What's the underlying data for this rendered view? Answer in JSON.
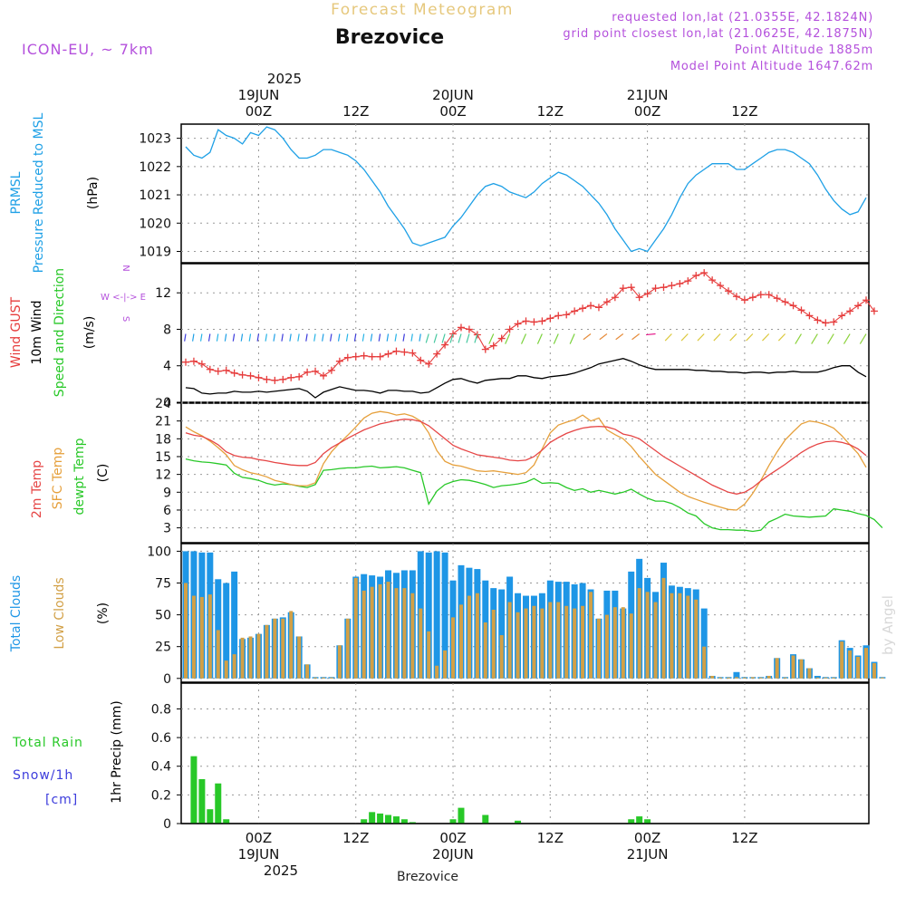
{
  "header": {
    "subtitle": "Forecast Meteogram",
    "location": "Brezovice",
    "model": "ICON-EU, ~ 7km",
    "info_lines": [
      "requested lon,lat (21.0355E, 42.1824N)",
      "grid point closest lon,lat (21.0625E, 42.1875N)",
      "Point Altitude 1885m",
      "Model Point Altitude 1647.62m"
    ],
    "bottom_label": "Brezovice",
    "watermark": "by Angel"
  },
  "colors": {
    "pressure": "#1ea0e6",
    "gust": "#e63c3c",
    "wind": "#000000",
    "temp2m": "#e64646",
    "sfc_temp": "#e6a03c",
    "dewpt": "#28c828",
    "total_clouds": "#1e96e6",
    "low_clouds": "#d2a046",
    "rain": "#28c828",
    "snow": "#3c3cdc",
    "purple": "#b450dc",
    "subtitle": "#e6c87d"
  },
  "time_axis": {
    "top_year": "2025",
    "top_labels": [
      {
        "date": "19JUN",
        "hour": "00Z"
      },
      {
        "date": "",
        "hour": "12Z"
      },
      {
        "date": "20JUN",
        "hour": "00Z"
      },
      {
        "date": "",
        "hour": "12Z"
      },
      {
        "date": "21JUN",
        "hour": "00Z"
      },
      {
        "date": "",
        "hour": "12Z"
      }
    ],
    "bottom_labels": [
      {
        "hour": "00Z",
        "date": "19JUN",
        "year": "2025"
      },
      {
        "hour": "12Z",
        "date": "",
        "year": ""
      },
      {
        "hour": "00Z",
        "date": "20JUN",
        "year": ""
      },
      {
        "hour": "12Z",
        "date": "",
        "year": ""
      },
      {
        "hour": "00Z",
        "date": "21JUN",
        "year": ""
      },
      {
        "hour": "12Z",
        "date": "",
        "year": ""
      }
    ]
  },
  "chart_data": [
    {
      "type": "line",
      "panel": "pressure",
      "ylabel_lines": [
        "PRMSL",
        "Pressure Reduced to MSL"
      ],
      "unit": "(hPa)",
      "yticks": [
        "1019",
        "1020",
        "1021",
        "1022",
        "1023"
      ],
      "ylim": [
        1018.6,
        1023.5
      ],
      "x_hours": "hours from 18JUN 15Z, 1h steps",
      "series": [
        {
          "name": "PRMSL",
          "values": [
            1022.7,
            1022.4,
            1022.3,
            1022.5,
            1023.3,
            1023.1,
            1023.0,
            1022.8,
            1023.2,
            1023.1,
            1023.4,
            1023.3,
            1023.0,
            1022.6,
            1022.3,
            1022.3,
            1022.4,
            1022.6,
            1022.6,
            1022.5,
            1022.4,
            1022.2,
            1021.9,
            1021.5,
            1021.1,
            1020.6,
            1020.2,
            1019.8,
            1019.3,
            1019.2,
            1019.3,
            1019.4,
            1019.5,
            1019.9,
            1020.2,
            1020.6,
            1021.0,
            1021.3,
            1021.4,
            1021.3,
            1021.1,
            1021.0,
            1020.9,
            1021.1,
            1021.4,
            1021.6,
            1021.8,
            1021.7,
            1021.5,
            1021.3,
            1021.0,
            1020.7,
            1020.3,
            1019.8,
            1019.4,
            1019.0,
            1019.1,
            1019.0,
            1019.4,
            1019.8,
            1020.3,
            1020.9,
            1021.4,
            1021.7,
            1021.9,
            1022.1,
            1022.1,
            1022.1,
            1021.9,
            1021.9,
            1022.1,
            1022.3,
            1022.5,
            1022.6,
            1022.6,
            1022.5,
            1022.3,
            1022.1,
            1021.7,
            1021.2,
            1020.8,
            1020.5,
            1020.3,
            1020.4,
            1020.9
          ]
        }
      ]
    },
    {
      "type": "line",
      "panel": "wind",
      "ylabel_lines": [
        "Wind GUST",
        "10m Wind",
        "Speed and Direction"
      ],
      "unit": "(m/s)",
      "compass": [
        "N",
        "W <-|-> E",
        "S"
      ],
      "yticks": [
        "0",
        "4",
        "8",
        "12"
      ],
      "ylim": [
        0,
        15.2
      ],
      "series": [
        {
          "name": "Wind GUST",
          "values": [
            4.4,
            4.5,
            4.2,
            3.6,
            3.4,
            3.5,
            3.2,
            3.0,
            2.9,
            2.7,
            2.5,
            2.4,
            2.5,
            2.7,
            2.8,
            3.3,
            3.4,
            2.9,
            3.5,
            4.5,
            4.9,
            5.0,
            5.1,
            5.0,
            5.0,
            5.3,
            5.6,
            5.5,
            5.4,
            4.6,
            4.2,
            5.3,
            6.3,
            7.5,
            8.2,
            8.0,
            7.4,
            5.8,
            6.2,
            7.0,
            8.0,
            8.6,
            8.9,
            8.8,
            8.9,
            9.2,
            9.5,
            9.6,
            10.0,
            10.3,
            10.6,
            10.4,
            11.0,
            11.5,
            12.5,
            12.6,
            11.5,
            11.9,
            12.5,
            12.6,
            12.8,
            13.0,
            13.3,
            13.9,
            14.2,
            13.4,
            12.8,
            12.2,
            11.6,
            11.2,
            11.5,
            11.8,
            11.8,
            11.4,
            11.0,
            10.6,
            10.1,
            9.5,
            9.0,
            8.7,
            8.8,
            9.5,
            10.0,
            10.6,
            11.2,
            10.0
          ]
        },
        {
          "name": "10m Wind",
          "values": [
            1.6,
            1.5,
            1.0,
            0.9,
            1.0,
            1.0,
            1.2,
            1.1,
            1.1,
            1.2,
            1.1,
            1.2,
            1.3,
            1.4,
            1.5,
            1.2,
            0.5,
            1.1,
            1.4,
            1.7,
            1.5,
            1.3,
            1.3,
            1.2,
            1.0,
            1.3,
            1.3,
            1.2,
            1.2,
            1.0,
            1.1,
            1.6,
            2.1,
            2.5,
            2.6,
            2.3,
            2.1,
            2.4,
            2.5,
            2.6,
            2.6,
            2.9,
            2.9,
            2.7,
            2.6,
            2.8,
            2.9,
            3.0,
            3.2,
            3.5,
            3.8,
            4.2,
            4.4,
            4.6,
            4.8,
            4.5,
            4.1,
            3.8,
            3.6,
            3.6,
            3.6,
            3.6,
            3.6,
            3.5,
            3.5,
            3.4,
            3.4,
            3.3,
            3.3,
            3.2,
            3.3,
            3.3,
            3.2,
            3.3,
            3.3,
            3.4,
            3.3,
            3.3,
            3.3,
            3.5,
            3.8,
            4.0,
            4.0,
            3.3,
            2.8
          ]
        }
      ]
    },
    {
      "type": "line",
      "panel": "temperature",
      "ylabel_lines": [
        "2m Temp",
        "SFC Temp",
        "dewpt Temp"
      ],
      "unit": "(C)",
      "yticks": [
        "3",
        "6",
        "9",
        "12",
        "15",
        "18",
        "21",
        "24"
      ],
      "ylim": [
        0.5,
        24
      ],
      "series": [
        {
          "name": "2m Temp",
          "values": [
            19.0,
            18.6,
            18.4,
            17.8,
            17.0,
            15.8,
            15.2,
            14.9,
            14.8,
            14.5,
            14.3,
            14.0,
            13.8,
            13.6,
            13.5,
            13.5,
            14.0,
            15.5,
            16.5,
            17.3,
            18.1,
            18.8,
            19.5,
            20.0,
            20.5,
            20.8,
            21.1,
            21.3,
            21.2,
            20.9,
            20.2,
            19.1,
            18.0,
            16.9,
            16.3,
            15.8,
            15.3,
            15.1,
            14.9,
            14.7,
            14.4,
            14.3,
            14.4,
            15.0,
            16.1,
            17.4,
            18.2,
            18.9,
            19.4,
            19.8,
            20.0,
            20.1,
            20.0,
            19.6,
            18.8,
            18.5,
            18.0,
            17.0,
            16.0,
            15.0,
            14.2,
            13.4,
            12.6,
            11.8,
            11.0,
            10.2,
            9.6,
            9.0,
            8.7,
            9.0,
            9.8,
            10.9,
            11.9,
            12.8,
            13.7,
            14.7,
            15.7,
            16.5,
            17.1,
            17.5,
            17.6,
            17.4,
            17.0,
            16.3,
            15.2
          ]
        },
        {
          "name": "SFC Temp",
          "values": [
            20.0,
            19.2,
            18.5,
            17.6,
            16.5,
            15.3,
            13.5,
            12.8,
            12.3,
            12.0,
            11.6,
            11.0,
            10.7,
            10.3,
            10.1,
            10.1,
            10.6,
            13.8,
            15.8,
            17.3,
            18.6,
            20.0,
            21.5,
            22.3,
            22.6,
            22.4,
            22.0,
            22.2,
            21.8,
            21.0,
            19.0,
            16.0,
            14.2,
            13.6,
            13.4,
            13.0,
            12.6,
            12.5,
            12.6,
            12.4,
            12.2,
            12.0,
            12.3,
            13.6,
            16.3,
            19.0,
            20.3,
            20.8,
            21.2,
            22.0,
            21.0,
            21.5,
            19.5,
            18.7,
            18.0,
            16.7,
            15.0,
            13.5,
            12.0,
            11.0,
            10.0,
            9.0,
            8.3,
            7.8,
            7.3,
            6.9,
            6.5,
            6.1,
            6.0,
            7.0,
            8.8,
            11.0,
            13.5,
            15.8,
            17.8,
            19.2,
            20.5,
            21.0,
            20.8,
            20.4,
            19.8,
            18.5,
            17.0,
            15.5,
            13.2
          ]
        },
        {
          "name": "dewpt Temp",
          "values": [
            14.6,
            14.3,
            14.1,
            14.0,
            13.8,
            13.6,
            12.2,
            11.5,
            11.3,
            11.0,
            10.5,
            10.2,
            10.4,
            10.3,
            10.0,
            9.8,
            10.3,
            12.7,
            12.8,
            13.0,
            13.1,
            13.1,
            13.3,
            13.4,
            13.1,
            13.2,
            13.3,
            13.1,
            12.7,
            12.3,
            7.0,
            9.2,
            10.3,
            10.8,
            11.1,
            11.0,
            10.7,
            10.3,
            9.8,
            10.1,
            10.2,
            10.4,
            10.7,
            11.3,
            10.5,
            10.6,
            10.5,
            9.8,
            9.3,
            9.6,
            9.0,
            9.3,
            9.0,
            8.7,
            9.0,
            9.5,
            8.7,
            8.0,
            7.5,
            7.5,
            7.1,
            6.4,
            5.5,
            5.0,
            3.7,
            3.0,
            2.7,
            2.7,
            2.6,
            2.6,
            2.4,
            2.6,
            4.0,
            4.6,
            5.3,
            5.0,
            4.9,
            4.8,
            4.9,
            5.0,
            6.2,
            6.0,
            5.8,
            5.4,
            5.1,
            4.4,
            3.0
          ]
        }
      ]
    },
    {
      "type": "bar",
      "panel": "clouds",
      "ylabel_lines": [
        "Total Clouds",
        "Low Clouds"
      ],
      "unit": "(%)",
      "yticks": [
        "0",
        "25",
        "50",
        "75",
        "100"
      ],
      "ylim": [
        -3,
        106
      ],
      "series": [
        {
          "name": "Total Clouds",
          "values": [
            100,
            100,
            99,
            99,
            78,
            75,
            84,
            31,
            32,
            35,
            42,
            47,
            48,
            52,
            33,
            11,
            0,
            0,
            0,
            26,
            47,
            80,
            82,
            81,
            80,
            85,
            83,
            85,
            85,
            100,
            99,
            100,
            99,
            77,
            89,
            87,
            86,
            77,
            71,
            70,
            80,
            67,
            65,
            65,
            67,
            77,
            76,
            76,
            74,
            75,
            70,
            47,
            69,
            69,
            55,
            84,
            94,
            79,
            68,
            91,
            73,
            72,
            71,
            70,
            55,
            2,
            0,
            1,
            5,
            1,
            1,
            0,
            2,
            16,
            0,
            19,
            15,
            8,
            2,
            0,
            0,
            30,
            24,
            18,
            26,
            13,
            0
          ]
        },
        {
          "name": "Low Clouds",
          "values": [
            75,
            65,
            64,
            66,
            38,
            14,
            19,
            32,
            33,
            35,
            42,
            47,
            47,
            53,
            33,
            11,
            0,
            0,
            0,
            26,
            47,
            79,
            69,
            72,
            74,
            76,
            71,
            71,
            67,
            55,
            37,
            10,
            22,
            48,
            58,
            65,
            67,
            44,
            54,
            34,
            60,
            52,
            55,
            57,
            55,
            60,
            60,
            57,
            55,
            57,
            68,
            47,
            50,
            56,
            56,
            51,
            71,
            68,
            60,
            79,
            67,
            67,
            65,
            62,
            25,
            2,
            0,
            0,
            1,
            0,
            1,
            0,
            2,
            16,
            0,
            18,
            15,
            8,
            0,
            0,
            0,
            29,
            22,
            17,
            24,
            12,
            0
          ]
        }
      ]
    },
    {
      "type": "bar",
      "panel": "precip",
      "ylabel_lines": [
        "1hr Precip (mm)"
      ],
      "legend": [
        "Total  Rain",
        "Snow/1h",
        "[cm]"
      ],
      "yticks": [
        "0",
        "0.2",
        "0.4",
        "0.6",
        "0.8"
      ],
      "ylim": [
        0,
        0.98
      ],
      "series": [
        {
          "name": "Total Rain",
          "values": [
            0,
            0.47,
            0.31,
            0.1,
            0.28,
            0.03,
            0,
            0,
            0,
            0,
            0,
            0,
            0,
            0,
            0,
            0,
            0,
            0,
            0,
            0,
            0,
            0,
            0.03,
            0.08,
            0.07,
            0.06,
            0.05,
            0.03,
            0.01,
            0,
            0,
            0,
            0,
            0.03,
            0.11,
            0,
            0,
            0.06,
            0,
            0,
            0,
            0.02,
            0,
            0,
            0,
            0,
            0,
            0,
            0,
            0,
            0,
            0,
            0,
            0,
            0,
            0.03,
            0.05,
            0.03,
            0,
            0,
            0,
            0,
            0,
            0,
            0,
            0,
            0,
            0,
            0,
            0,
            0,
            0,
            0,
            0,
            0,
            0,
            0,
            0,
            0,
            0,
            0,
            0,
            0,
            0,
            0,
            0
          ]
        }
      ]
    }
  ]
}
